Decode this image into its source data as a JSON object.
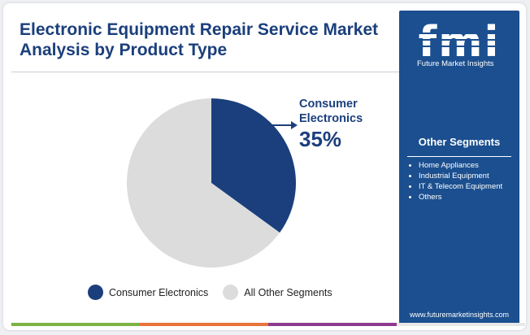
{
  "title_line1": "Electronic Equipment Repair Service Market",
  "title_line2": "Analysis by Product Type",
  "brand": {
    "logo_letters": "fmi",
    "name": "Future Market Insights",
    "website": "www.futuremarketinsights.com"
  },
  "side_panel": {
    "heading": "Other Segments",
    "items": [
      "Home Appliances",
      "Industrial Equipment",
      "IT & Telecom Equipment",
      "Others"
    ]
  },
  "colors": {
    "primary": "#1b3f7c",
    "panel": "#1b4f8f",
    "slice_other": "#dcdcdc",
    "bar": [
      "#7cb342",
      "#e8743b",
      "#8e3b8f",
      "#e8e8e8"
    ]
  },
  "chart_data": {
    "type": "pie",
    "labels": [
      "Consumer Electronics",
      "All Other Segments"
    ],
    "values": [
      35,
      65
    ],
    "colors": [
      "#1b3f7c",
      "#dcdcdc"
    ],
    "annotation": {
      "label_line1": "Consumer",
      "label_line2": "Electronics",
      "value_text": "35%"
    },
    "legend": [
      "Consumer Electronics",
      "All Other Segments"
    ],
    "legend_position": "bottom"
  }
}
